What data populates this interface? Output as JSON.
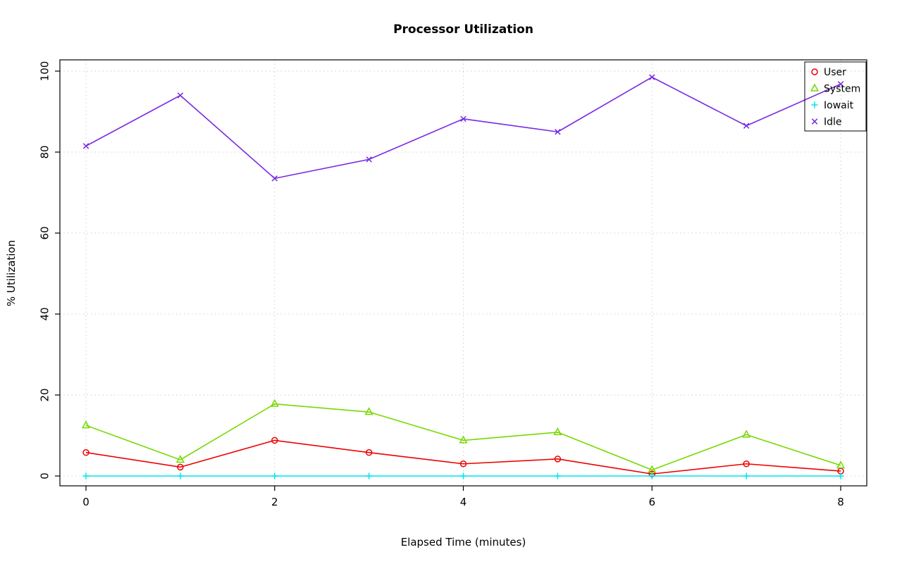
{
  "chart_data": {
    "type": "line",
    "title": "Processor Utilization",
    "xlabel": "Elapsed Time (minutes)",
    "ylabel": "% Utilization",
    "x": [
      0,
      1,
      2,
      3,
      4,
      5,
      6,
      7,
      8
    ],
    "xlim": [
      0,
      8
    ],
    "ylim": [
      0,
      100
    ],
    "x_ticks": [
      0,
      2,
      4,
      6,
      8
    ],
    "y_ticks": [
      0,
      20,
      40,
      60,
      80,
      100
    ],
    "grid": true,
    "grid_color": "#cfcfcf",
    "legend_position": "top-right",
    "series": [
      {
        "name": "User",
        "color": "#ee0000",
        "marker": "circle",
        "values": [
          5.8,
          2.2,
          8.8,
          5.8,
          3.0,
          4.2,
          0.5,
          3.0,
          1.2
        ]
      },
      {
        "name": "System",
        "color": "#76d900",
        "marker": "triangle",
        "values": [
          12.5,
          4.0,
          17.8,
          15.8,
          8.8,
          10.8,
          1.5,
          10.2,
          2.6
        ]
      },
      {
        "name": "Iowait",
        "color": "#00e5ee",
        "marker": "plus",
        "values": [
          0,
          0,
          0,
          0,
          0,
          0,
          0,
          0,
          0
        ]
      },
      {
        "name": "Idle",
        "color": "#7b2be2",
        "marker": "x",
        "values": [
          81.5,
          94.0,
          73.5,
          78.2,
          88.2,
          85.0,
          98.5,
          86.5,
          96.8
        ]
      }
    ]
  }
}
